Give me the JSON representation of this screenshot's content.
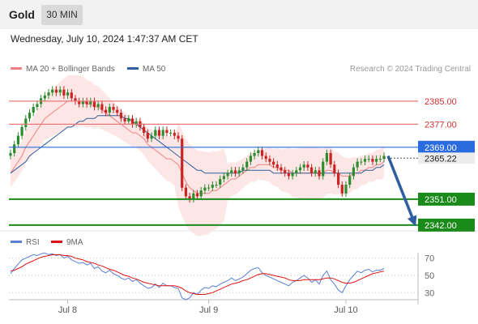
{
  "header": {
    "asset": "Gold",
    "timeframe": "30 MIN"
  },
  "datetime": "Wednesday, July 10, 2024 1:47:37 AM CET",
  "legend": {
    "bollinger": {
      "label": "MA 20 + Bollinger Bands",
      "color": "#f08080"
    },
    "ma50": {
      "label": "MA 50",
      "color": "#2f5e9e"
    }
  },
  "credit": "Research © 2024 Trading Central",
  "rsi_legend": {
    "rsi": {
      "label": "RSI",
      "color": "#5b7fd6"
    },
    "ma": {
      "label": "9MA",
      "color": "#dd1111"
    }
  },
  "colors": {
    "resistance": "#e87878",
    "pivot": "#2a6be0",
    "support": "#1a8a1a",
    "current": "#3a3a3a",
    "arrow": "#2f5e9e",
    "candle_up": "#2e8b2e",
    "candle_down": "#cc2222",
    "band_fill": "#fde3e3"
  },
  "chart_data": {
    "type": "candlestick",
    "x_labels": [
      "Jul 8",
      "Jul 9",
      "Jul 10"
    ],
    "y_range": [
      2340,
      2392
    ],
    "levels": [
      {
        "label": "2385.00",
        "value": 2385.0,
        "kind": "resistance"
      },
      {
        "label": "2377.00",
        "value": 2377.0,
        "kind": "resistance"
      },
      {
        "label": "2369.00",
        "value": 2369.0,
        "kind": "pivot"
      },
      {
        "label": "2365.22",
        "value": 2365.22,
        "kind": "current"
      },
      {
        "label": "2351.00",
        "value": 2351.0,
        "kind": "support"
      },
      {
        "label": "2342.00",
        "value": 2342.0,
        "kind": "support"
      }
    ],
    "forecast_arrow": {
      "from": 2366,
      "to": 2342
    },
    "close": [
      2367,
      2370,
      2373,
      2376,
      2379,
      2381,
      2383,
      2384,
      2386,
      2387,
      2388,
      2389,
      2388,
      2389,
      2387,
      2388,
      2386,
      2385,
      2384,
      2385,
      2384,
      2385,
      2383,
      2384,
      2382,
      2381,
      2383,
      2382,
      2381,
      2379,
      2378,
      2379,
      2377,
      2378,
      2376,
      2374,
      2372,
      2373,
      2375,
      2373,
      2375,
      2374,
      2374,
      2373,
      2372,
      2355,
      2352,
      2351,
      2353,
      2352,
      2354,
      2355,
      2355,
      2356,
      2356,
      2358,
      2359,
      2360,
      2361,
      2360,
      2361,
      2362,
      2364,
      2366,
      2367,
      2368,
      2366,
      2365,
      2364,
      2363,
      2362,
      2361,
      2360,
      2359,
      2360,
      2361,
      2362,
      2363,
      2362,
      2360,
      2361,
      2359,
      2364,
      2367,
      2363,
      2360,
      2356,
      2353,
      2356,
      2359,
      2362,
      2364,
      2364,
      2365,
      2365,
      2364,
      2365,
      2365,
      2366
    ],
    "ma20": [
      2360,
      2362,
      2364,
      2366,
      2369,
      2371,
      2373,
      2375,
      2377,
      2379,
      2380,
      2381,
      2382,
      2383,
      2384,
      2385,
      2385,
      2385,
      2385,
      2385,
      2384,
      2384,
      2383,
      2383,
      2382,
      2381,
      2380,
      2379,
      2378,
      2377,
      2376,
      2375,
      2374,
      2374,
      2373,
      2372,
      2370,
      2369,
      2368,
      2367,
      2366,
      2365,
      2365,
      2364,
      2363,
      2360,
      2357,
      2355,
      2354,
      2353,
      2353,
      2353,
      2353,
      2354,
      2354,
      2355,
      2356,
      2357,
      2358,
      2358,
      2359,
      2360,
      2361,
      2362,
      2362,
      2363,
      2363,
      2363,
      2363,
      2362,
      2362,
      2361,
      2361,
      2361,
      2360,
      2360,
      2360,
      2360,
      2360,
      2360,
      2360,
      2360,
      2360,
      2361,
      2361,
      2360,
      2360,
      2359,
      2359,
      2359,
      2360,
      2360,
      2361,
      2361,
      2362,
      2362,
      2363,
      2363,
      2364
    ],
    "ma50": [
      2360,
      2361,
      2362,
      2363,
      2364,
      2366,
      2367,
      2368,
      2369,
      2370,
      2371,
      2372,
      2373,
      2374,
      2375,
      2376,
      2376,
      2377,
      2378,
      2378,
      2379,
      2379,
      2379,
      2380,
      2380,
      2380,
      2380,
      2380,
      2380,
      2380,
      2379,
      2379,
      2378,
      2377,
      2376,
      2375,
      2374,
      2373,
      2372,
      2371,
      2370,
      2369,
      2368,
      2367,
      2366,
      2365,
      2364,
      2363,
      2362,
      2361,
      2361,
      2360,
      2360,
      2360,
      2360,
      2360,
      2360,
      2360,
      2360,
      2360,
      2360,
      2361,
      2361,
      2361,
      2361,
      2361,
      2361,
      2361,
      2361,
      2360,
      2360,
      2360,
      2360,
      2360,
      2360,
      2360,
      2360,
      2360,
      2360,
      2360,
      2360,
      2360,
      2360,
      2360,
      2360,
      2360,
      2360,
      2360,
      2360,
      2360,
      2360,
      2360,
      2360,
      2361,
      2361,
      2361,
      2362,
      2362,
      2363
    ],
    "rsi_axis": [
      "70",
      "50",
      "30"
    ],
    "rsi_range": [
      20,
      80
    ],
    "rsi": [
      52,
      58,
      63,
      68,
      70,
      72,
      74,
      73,
      75,
      76,
      74,
      75,
      73,
      74,
      70,
      72,
      68,
      66,
      64,
      65,
      62,
      64,
      58,
      60,
      55,
      53,
      56,
      52,
      50,
      47,
      45,
      47,
      43,
      45,
      41,
      38,
      35,
      36,
      40,
      36,
      41,
      38,
      38,
      36,
      35,
      24,
      22,
      24,
      30,
      28,
      33,
      36,
      35,
      38,
      37,
      40,
      42,
      44,
      47,
      44,
      46,
      48,
      52,
      56,
      58,
      59,
      53,
      50,
      48,
      46,
      44,
      42,
      40,
      38,
      42,
      44,
      47,
      50,
      47,
      42,
      45,
      40,
      50,
      55,
      45,
      40,
      33,
      30,
      38,
      45,
      50,
      55,
      53,
      56,
      57,
      54,
      56,
      56,
      58
    ],
    "rsi_ma": [
      55,
      56,
      58,
      60,
      63,
      65,
      67,
      69,
      71,
      72,
      73,
      74,
      74,
      74,
      73,
      73,
      72,
      70,
      69,
      68,
      66,
      65,
      64,
      62,
      61,
      59,
      57,
      56,
      54,
      52,
      50,
      49,
      47,
      46,
      44,
      42,
      41,
      40,
      39,
      38,
      38,
      38,
      38,
      38,
      37,
      35,
      32,
      30,
      29,
      28,
      28,
      28,
      29,
      30,
      32,
      34,
      36,
      38,
      40,
      41,
      42,
      44,
      45,
      47,
      49,
      51,
      52,
      52,
      51,
      50,
      49,
      48,
      47,
      45,
      44,
      44,
      44,
      45,
      45,
      45,
      45,
      45,
      46,
      47,
      47,
      46,
      44,
      42,
      41,
      41,
      42,
      44,
      46,
      48,
      50,
      52,
      53,
      54,
      55
    ]
  }
}
